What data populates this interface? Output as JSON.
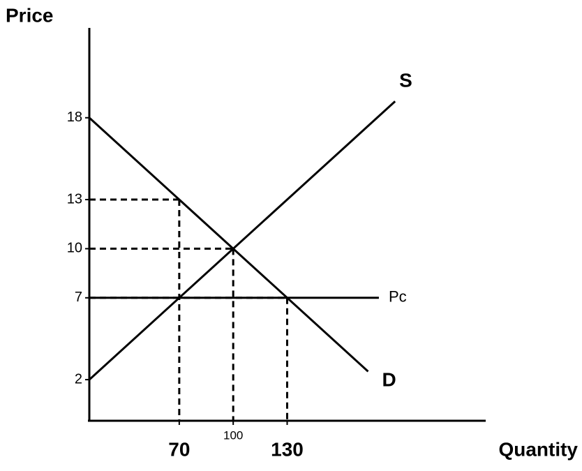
{
  "chart_data": {
    "type": "line",
    "y_label": "Price",
    "x_label": "Quantity",
    "xlim": [
      20,
      240
    ],
    "ylim": [
      0,
      24
    ],
    "xticks": [
      70,
      100,
      130
    ],
    "yticks": [
      2,
      7,
      10,
      13,
      18
    ],
    "series": [
      {
        "name": "D",
        "color": "#000000",
        "x": [
          20,
          175
        ],
        "values": [
          18,
          2.5
        ]
      },
      {
        "name": "S",
        "color": "#000000",
        "x": [
          20,
          190
        ],
        "values": [
          2,
          19
        ]
      },
      {
        "name": "Pc",
        "color": "#000000",
        "x": [
          20,
          181
        ],
        "values": [
          7,
          7
        ]
      }
    ],
    "guides": [
      {
        "x": 70,
        "y": 13
      },
      {
        "x": 100,
        "y": 10
      },
      {
        "x": 130,
        "y": 7
      }
    ]
  }
}
